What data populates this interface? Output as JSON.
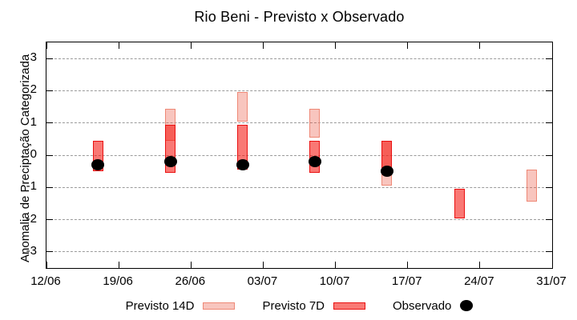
{
  "title": "Rio Beni - Previsto x Observado",
  "chart_data": {
    "type": "bar",
    "subtype": "floating-interval-forecast-vs-observed",
    "title": "Rio Beni - Previsto x Observado",
    "xlabel": "",
    "ylabel": "Anomalia de Preciptação Categorizada",
    "ylim": [
      -3.5,
      3.5
    ],
    "xlim_days": [
      0,
      49
    ],
    "grid": "horizontal-dashed",
    "legend_position": "bottom-center",
    "y_ticks": [
      3,
      2,
      1,
      0,
      -1,
      -2,
      -3
    ],
    "x_ticks": [
      {
        "label": "12/06",
        "day": 0
      },
      {
        "label": "19/06",
        "day": 7
      },
      {
        "label": "26/06",
        "day": 14
      },
      {
        "label": "03/07",
        "day": 21
      },
      {
        "label": "10/07",
        "day": 28
      },
      {
        "label": "17/07",
        "day": 35
      },
      {
        "label": "24/07",
        "day": 42
      },
      {
        "label": "31/07",
        "day": 49
      }
    ],
    "colors": {
      "axis": "#000000",
      "grid": "#9a9a9a",
      "previsto_14d_fill": "rgba(236,90,70,0.35)",
      "previsto_14d_border": "#ee8876",
      "previsto_7d_fill": "rgba(245,15,8,0.56)",
      "previsto_7d_border": "#ea1010",
      "observado_dot": "#000000"
    },
    "series": [
      {
        "name": "Previsto 14D",
        "style": "interval",
        "element_name": "forecast-box-14d",
        "fill": "rgba(236,90,70,0.35)",
        "border": "#ee8876",
        "border_px": 1,
        "points": [
          {
            "date": "24/06",
            "day": 12,
            "low": 0.45,
            "high": 1.45
          },
          {
            "date": "01/07",
            "day": 19,
            "low": 1.05,
            "high": 1.95
          },
          {
            "date": "08/07",
            "day": 26,
            "low": 0.55,
            "high": 1.45
          },
          {
            "date": "15/07",
            "day": 33,
            "low": -0.95,
            "high": 0.45
          },
          {
            "date": "29/07",
            "day": 47,
            "low": -1.45,
            "high": -0.45
          }
        ]
      },
      {
        "name": "Previsto 7D",
        "style": "interval",
        "element_name": "forecast-box-7d",
        "fill": "rgba(245,15,8,0.56)",
        "border": "#ea1010",
        "border_px": 1.5,
        "points": [
          {
            "date": "17/06",
            "day": 5,
            "low": -0.5,
            "high": 0.45
          },
          {
            "date": "24/06",
            "day": 12,
            "low": -0.55,
            "high": 0.95
          },
          {
            "date": "01/07",
            "day": 19,
            "low": -0.45,
            "high": 0.95
          },
          {
            "date": "08/07",
            "day": 26,
            "low": -0.55,
            "high": 0.45
          },
          {
            "date": "15/07",
            "day": 33,
            "low": -0.55,
            "high": 0.45
          },
          {
            "date": "22/07",
            "day": 40,
            "low": -1.95,
            "high": -1.05
          }
        ]
      },
      {
        "name": "Observado",
        "style": "scatter",
        "element_name": "observed-dot",
        "color": "#000000",
        "points": [
          {
            "date": "17/06",
            "day": 5,
            "value": -0.3
          },
          {
            "date": "24/06",
            "day": 12,
            "value": -0.2
          },
          {
            "date": "01/07",
            "day": 19,
            "value": -0.3
          },
          {
            "date": "08/07",
            "day": 26,
            "value": -0.2
          },
          {
            "date": "15/07",
            "day": 33,
            "value": -0.5
          }
        ]
      }
    ]
  },
  "legend": {
    "items": [
      {
        "label": "Previsto 14D",
        "swatch": "box",
        "series": "Previsto 14D"
      },
      {
        "label": "Previsto 7D",
        "swatch": "box",
        "series": "Previsto 7D"
      },
      {
        "label": "Observado",
        "swatch": "dot",
        "series": "Observado"
      }
    ]
  }
}
